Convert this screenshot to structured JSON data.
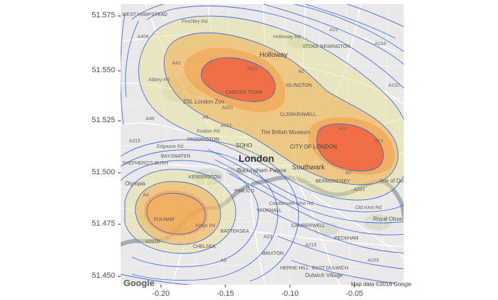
{
  "map": {
    "y_ticks": [
      "51.575",
      "51.550",
      "51.525",
      "51.500",
      "51.475",
      "51.450"
    ],
    "x_ticks": [
      "-0.20",
      "-0.15",
      "-0.10",
      "-0.05"
    ],
    "places_major": [
      "London"
    ],
    "places_mid": [
      "Holloway",
      "Southwark",
      "CITY OF LONDON",
      "SOHO"
    ],
    "places_minor": [
      "ZSL London Zoo",
      "The British Museum",
      "Buckingham Palace",
      "PADDINGTON",
      "CAMDEN TOWN",
      "FULHAM",
      "CHELSEA",
      "KENSINGTON",
      "BRIXTON",
      "CLERKENWELL",
      "BERMONDSEY",
      "CAMBERWELL",
      "EAST DULWICH",
      "HERNE HILL",
      "Dulwich Village",
      "Royal Observatory Greenwich",
      "Isle of Dogs",
      "Olympia",
      "SHEPHERD'S BUSH",
      "BATTERSEA",
      "STOKE NEWINGTON",
      "BAYSWATER",
      "PIMLICO",
      "VAUXHALL",
      "PECKHAM",
      "ISLINGTON",
      "WEST HAMPSTEAD"
    ],
    "roads": [
      "A1",
      "A10",
      "A201",
      "A3",
      "A4",
      "A40",
      "A41",
      "A5",
      "A501",
      "A503",
      "A205",
      "A23",
      "A202",
      "A215",
      "A2",
      "A13",
      "A11",
      "A104",
      "A406",
      "A102",
      "A315",
      "A3216",
      "Finchley Rd",
      "Abbey Rd",
      "Holloway Rd",
      "Euston Rd",
      "Old Kent Rd",
      "Camberwell New Rd",
      "Edgware Rd",
      "Kings Rd"
    ],
    "google_logo": "Google",
    "attribution": "Map data ©2016 Google",
    "colors": {
      "contour_line": "#2f5de8",
      "density_low": "#e8e090",
      "density_mid": "#f0a04a",
      "density_high": "#f25a3c",
      "basemap": "#e8e8e8",
      "road_major": "#ffffff",
      "water": "#9aa0a8",
      "park": "#d6dccd"
    }
  }
}
